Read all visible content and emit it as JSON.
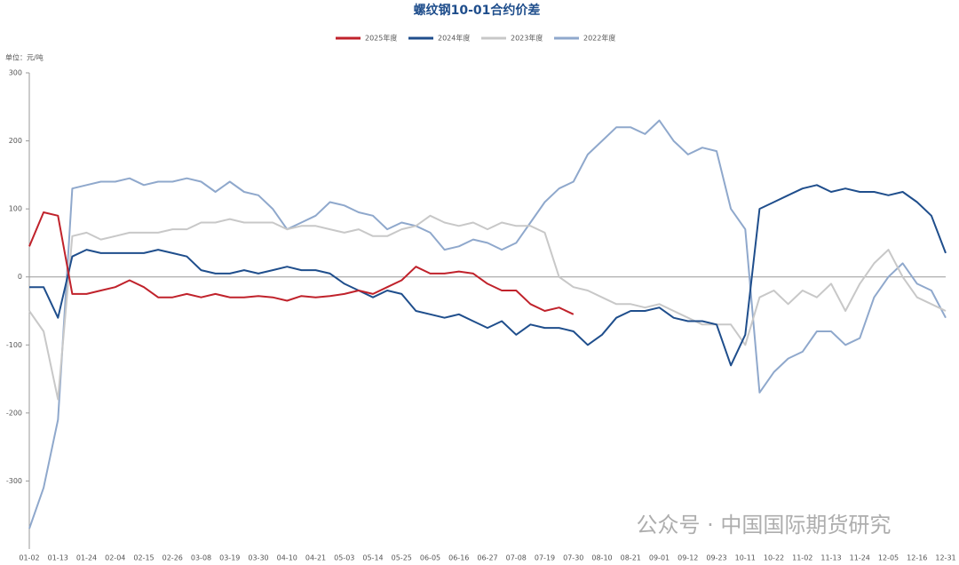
{
  "chart_data": {
    "type": "line",
    "title": "螺纹钢10-01合约价差",
    "unit_label": "单位：元/吨",
    "watermark": "公众号 · 中国国际期货研究",
    "categories": [
      "01-02",
      null,
      "01-13",
      null,
      "01-24",
      null,
      "02-04",
      null,
      "02-15",
      null,
      "02-26",
      null,
      "03-08",
      null,
      "03-19",
      null,
      "03-30",
      null,
      "04-10",
      null,
      "04-21",
      null,
      "05-03",
      null,
      "05-14",
      null,
      "05-25",
      null,
      "06-05",
      null,
      "06-16",
      null,
      "06-27",
      null,
      "07-08",
      null,
      "07-19",
      null,
      "07-30",
      null,
      "08-10",
      null,
      "08-21",
      null,
      "09-01",
      null,
      "09-12",
      null,
      "09-23",
      null,
      "10-11",
      null,
      "10-22",
      null,
      "11-02",
      null,
      "11-13",
      null,
      "11-24",
      null,
      "12-05",
      null,
      "12-16",
      null,
      "12-31"
    ],
    "series": [
      {
        "name": "2025年度",
        "color": "#c0222b",
        "values": [
          45,
          95,
          90,
          -25,
          -25,
          -20,
          -15,
          -5,
          -15,
          -30,
          -30,
          -25,
          -30,
          -25,
          -30,
          -30,
          -28,
          -30,
          -35,
          -28,
          -30,
          -28,
          -25,
          -20,
          -25,
          -15,
          -5,
          15,
          5,
          5,
          8,
          5,
          -10,
          -20,
          -20,
          -40,
          -50,
          -45,
          -55,
          null,
          null,
          null,
          null,
          null,
          null,
          null,
          null,
          null,
          null,
          null,
          null,
          null,
          null,
          null,
          null,
          null,
          null,
          null,
          null,
          null,
          null,
          null,
          null,
          null,
          null
        ]
      },
      {
        "name": "2024年度",
        "color": "#1f4e8c",
        "values": [
          -15,
          -15,
          -60,
          30,
          40,
          35,
          35,
          35,
          35,
          40,
          35,
          30,
          10,
          5,
          5,
          10,
          5,
          10,
          15,
          10,
          10,
          5,
          -10,
          -20,
          -30,
          -20,
          -25,
          -50,
          -55,
          -60,
          -55,
          -65,
          -75,
          -65,
          -85,
          -70,
          -75,
          -75,
          -80,
          -100,
          -85,
          -60,
          -50,
          -50,
          -45,
          -60,
          -65,
          -65,
          -70,
          -130,
          -85,
          100,
          110,
          120,
          130,
          135,
          125,
          130,
          125,
          125,
          120,
          125,
          110,
          90,
          35
        ]
      },
      {
        "name": "2023年度",
        "color": "#c8c8c8",
        "values": [
          -50,
          -80,
          -180,
          60,
          65,
          55,
          60,
          65,
          65,
          65,
          70,
          70,
          80,
          80,
          85,
          80,
          80,
          80,
          70,
          75,
          75,
          70,
          65,
          70,
          60,
          60,
          70,
          75,
          90,
          80,
          75,
          80,
          70,
          80,
          75,
          75,
          65,
          0,
          -15,
          -20,
          -30,
          -40,
          -40,
          -45,
          -40,
          -50,
          -60,
          -70,
          -70,
          -70,
          -100,
          -30,
          -20,
          -40,
          -20,
          -30,
          -10,
          -50,
          -10,
          20,
          40,
          0,
          -30,
          -40,
          -50
        ]
      },
      {
        "name": "2022年度",
        "color": "#8fa8cc",
        "values": [
          -370,
          -310,
          -210,
          130,
          135,
          140,
          140,
          145,
          135,
          140,
          140,
          145,
          140,
          125,
          140,
          125,
          120,
          100,
          70,
          80,
          90,
          110,
          105,
          95,
          90,
          70,
          80,
          75,
          65,
          40,
          45,
          55,
          50,
          40,
          50,
          80,
          110,
          130,
          140,
          180,
          200,
          220,
          220,
          210,
          230,
          200,
          180,
          190,
          185,
          100,
          70,
          -170,
          -140,
          -120,
          -110,
          -80,
          -80,
          -100,
          -90,
          -30,
          0,
          20,
          -10,
          -20,
          -60
        ]
      }
    ],
    "ylim": [
      -400,
      300
    ],
    "yticks": [
      300,
      200,
      100,
      0,
      -100,
      -200,
      -300
    ],
    "grid": false,
    "legend": "top"
  }
}
